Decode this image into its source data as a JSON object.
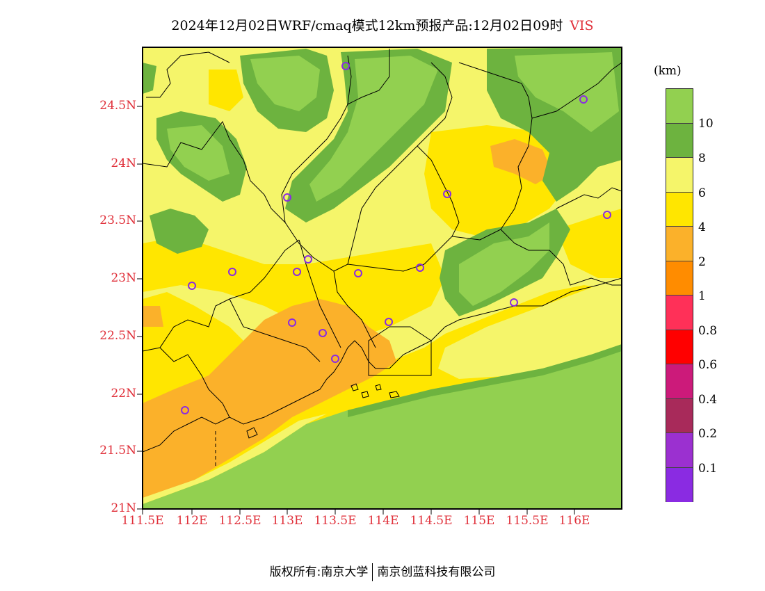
{
  "title": {
    "main": "2024年12月02日WRF/cmaq模式12km预报产品:12月02日09时",
    "variable": "VIS"
  },
  "axes": {
    "lat_ticks": [
      "24.5N",
      "24N",
      "23.5N",
      "23N",
      "22.5N",
      "22N",
      "21.5N",
      "21N"
    ],
    "lon_ticks": [
      "111.5E",
      "112E",
      "112.5E",
      "113E",
      "113.5E",
      "114E",
      "114.5E",
      "115E",
      "115.5E",
      "116E"
    ]
  },
  "legend": {
    "unit": "(km)",
    "levels": [
      {
        "label": "10",
        "color": "#92d050"
      },
      {
        "label": "8",
        "color": "#6db33f"
      },
      {
        "label": "6",
        "color": "#f5f56a"
      },
      {
        "label": "4",
        "color": "#ffe600"
      },
      {
        "label": "2",
        "color": "#fbb12a"
      },
      {
        "label": "1",
        "color": "#ff8c00"
      },
      {
        "label": "0.8",
        "color": "#ff3058"
      },
      {
        "label": "0.6",
        "color": "#ff0000"
      },
      {
        "label": "0.4",
        "color": "#cc1a7a"
      },
      {
        "label": "0.2",
        "color": "#a82a5a"
      },
      {
        "label": "0.1",
        "color": "#9b30d0"
      },
      {
        "label": "",
        "color": "#8a2be2"
      }
    ]
  },
  "footer": {
    "left": "版权所有:南京大学",
    "right": "南京创蓝科技有限公司"
  },
  "colors": {
    "axis_label": "#e0303a",
    "station_marker": "#8a2be2"
  }
}
